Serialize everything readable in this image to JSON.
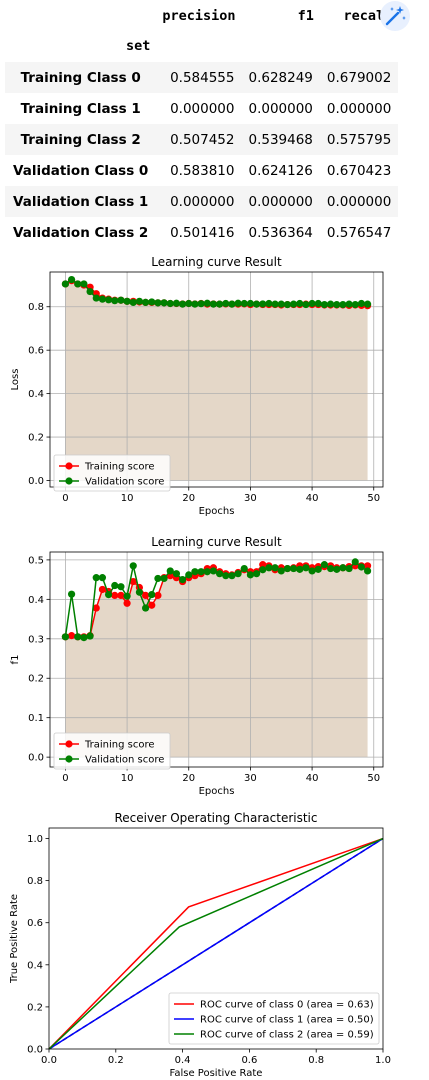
{
  "table": {
    "columns": [
      "precision",
      "f1",
      "recall"
    ],
    "index_name": "set",
    "rows": [
      {
        "label": "Training Class 0",
        "values": [
          "0.584555",
          "0.628249",
          "0.679002"
        ]
      },
      {
        "label": "Training Class 1",
        "values": [
          "0.000000",
          "0.000000",
          "0.000000"
        ]
      },
      {
        "label": "Training Class 2",
        "values": [
          "0.507452",
          "0.539468",
          "0.575795"
        ]
      },
      {
        "label": "Validation Class 0",
        "values": [
          "0.583810",
          "0.624126",
          "0.670423"
        ]
      },
      {
        "label": "Validation Class 1",
        "values": [
          "0.000000",
          "0.000000",
          "0.000000"
        ]
      },
      {
        "label": "Validation Class 2",
        "values": [
          "0.501416",
          "0.536364",
          "0.576547"
        ]
      }
    ]
  },
  "toolbar": {
    "icon": "magic-wand-icon"
  },
  "chart_data": [
    {
      "type": "table",
      "columns": [
        "precision",
        "f1",
        "recall"
      ],
      "rows": [
        "Training Class 0",
        "Training Class 1",
        "Training Class 2",
        "Validation Class 0",
        "Validation Class 1",
        "Validation Class 2"
      ],
      "values": [
        [
          0.584555,
          0.628249,
          0.679002
        ],
        [
          0.0,
          0.0,
          0.0
        ],
        [
          0.507452,
          0.539468,
          0.575795
        ],
        [
          0.58381,
          0.624126,
          0.670423
        ],
        [
          0.0,
          0.0,
          0.0
        ],
        [
          0.501416,
          0.536364,
          0.576547
        ]
      ]
    },
    {
      "type": "line",
      "title": "Learning curve Result",
      "xlabel": "Epochs",
      "ylabel": "Loss",
      "xlim": [
        -2.5,
        51.5
      ],
      "ylim": [
        -0.03,
        0.96
      ],
      "xticks": [
        0,
        10,
        20,
        30,
        40,
        50
      ],
      "yticks": [
        0.0,
        0.2,
        0.4,
        0.6,
        0.8
      ],
      "grid": true,
      "legend": "lower left",
      "fill_color": "#e4d7c8",
      "series": [
        {
          "name": "Training score",
          "color": "#ff0000",
          "x": [
            0,
            1,
            2,
            3,
            4,
            5,
            6,
            7,
            8,
            9,
            10,
            11,
            12,
            13,
            14,
            15,
            16,
            17,
            18,
            19,
            20,
            21,
            22,
            23,
            24,
            25,
            26,
            27,
            28,
            29,
            30,
            31,
            32,
            33,
            34,
            35,
            36,
            37,
            38,
            39,
            40,
            41,
            42,
            43,
            44,
            45,
            46,
            47,
            48,
            49
          ],
          "y": [
            0.905,
            0.92,
            0.905,
            0.9,
            0.89,
            0.86,
            0.84,
            0.835,
            0.83,
            0.83,
            0.825,
            0.825,
            0.822,
            0.82,
            0.82,
            0.818,
            0.818,
            0.815,
            0.815,
            0.813,
            0.815,
            0.813,
            0.815,
            0.812,
            0.813,
            0.812,
            0.813,
            0.812,
            0.812,
            0.813,
            0.81,
            0.812,
            0.81,
            0.81,
            0.81,
            0.808,
            0.81,
            0.81,
            0.81,
            0.812,
            0.81,
            0.81,
            0.808,
            0.808,
            0.808,
            0.808,
            0.806,
            0.808,
            0.806,
            0.805
          ]
        },
        {
          "name": "Validation score",
          "color": "#008000",
          "x": [
            0,
            1,
            2,
            3,
            4,
            5,
            6,
            7,
            8,
            9,
            10,
            11,
            12,
            13,
            14,
            15,
            16,
            17,
            18,
            19,
            20,
            21,
            22,
            23,
            24,
            25,
            26,
            27,
            28,
            29,
            30,
            31,
            32,
            33,
            34,
            35,
            36,
            37,
            38,
            39,
            40,
            41,
            42,
            43,
            44,
            45,
            46,
            47,
            48,
            49
          ],
          "y": [
            0.905,
            0.925,
            0.905,
            0.905,
            0.87,
            0.84,
            0.835,
            0.832,
            0.828,
            0.83,
            0.825,
            0.82,
            0.825,
            0.82,
            0.822,
            0.818,
            0.818,
            0.815,
            0.816,
            0.812,
            0.815,
            0.812,
            0.814,
            0.816,
            0.812,
            0.812,
            0.815,
            0.812,
            0.816,
            0.815,
            0.815,
            0.812,
            0.813,
            0.815,
            0.812,
            0.812,
            0.81,
            0.812,
            0.815,
            0.81,
            0.815,
            0.815,
            0.81,
            0.812,
            0.81,
            0.81,
            0.812,
            0.81,
            0.815,
            0.812
          ]
        }
      ]
    },
    {
      "type": "line",
      "title": "Learning curve Result",
      "xlabel": "Epochs",
      "ylabel": "f1",
      "xlim": [
        -2.5,
        51.5
      ],
      "ylim": [
        -0.025,
        0.52
      ],
      "xticks": [
        0,
        10,
        20,
        30,
        40,
        50
      ],
      "yticks": [
        0.0,
        0.1,
        0.2,
        0.3,
        0.4,
        0.5
      ],
      "grid": true,
      "legend": "lower left",
      "fill_color": "#e4d7c8",
      "series": [
        {
          "name": "Training score",
          "color": "#ff0000",
          "x": [
            0,
            1,
            2,
            3,
            4,
            5,
            6,
            7,
            8,
            9,
            10,
            11,
            12,
            13,
            14,
            15,
            16,
            17,
            18,
            19,
            20,
            21,
            22,
            23,
            24,
            25,
            26,
            27,
            28,
            29,
            30,
            31,
            32,
            33,
            34,
            35,
            36,
            37,
            38,
            39,
            40,
            41,
            42,
            43,
            44,
            45,
            46,
            47,
            48,
            49
          ],
          "y": [
            0.305,
            0.308,
            0.305,
            0.305,
            0.308,
            0.378,
            0.425,
            0.42,
            0.41,
            0.41,
            0.39,
            0.445,
            0.43,
            0.41,
            0.385,
            0.41,
            0.455,
            0.46,
            0.455,
            0.445,
            0.455,
            0.46,
            0.465,
            0.478,
            0.48,
            0.47,
            0.465,
            0.462,
            0.468,
            0.475,
            0.47,
            0.47,
            0.488,
            0.485,
            0.475,
            0.48,
            0.478,
            0.48,
            0.485,
            0.485,
            0.48,
            0.483,
            0.483,
            0.485,
            0.48,
            0.48,
            0.483,
            0.485,
            0.485,
            0.485
          ]
        },
        {
          "name": "Validation score",
          "color": "#008000",
          "x": [
            0,
            1,
            2,
            3,
            4,
            5,
            6,
            7,
            8,
            9,
            10,
            11,
            12,
            13,
            14,
            15,
            16,
            17,
            18,
            19,
            20,
            21,
            22,
            23,
            24,
            25,
            26,
            27,
            28,
            29,
            30,
            31,
            32,
            33,
            34,
            35,
            36,
            37,
            38,
            39,
            40,
            41,
            42,
            43,
            44,
            45,
            46,
            47,
            48,
            49
          ],
          "y": [
            0.305,
            0.413,
            0.305,
            0.303,
            0.307,
            0.455,
            0.455,
            0.412,
            0.435,
            0.432,
            0.408,
            0.485,
            0.418,
            0.378,
            0.412,
            0.453,
            0.453,
            0.472,
            0.465,
            0.45,
            0.462,
            0.47,
            0.47,
            0.47,
            0.472,
            0.465,
            0.46,
            0.46,
            0.465,
            0.478,
            0.462,
            0.465,
            0.475,
            0.48,
            0.48,
            0.472,
            0.478,
            0.478,
            0.476,
            0.48,
            0.472,
            0.476,
            0.488,
            0.478,
            0.476,
            0.48,
            0.478,
            0.495,
            0.482,
            0.472
          ]
        }
      ]
    },
    {
      "type": "line",
      "title": "Receiver Operating Characteristic",
      "xlabel": "False Positive Rate",
      "ylabel": "True Positive Rate",
      "xlim": [
        0.0,
        1.0
      ],
      "ylim": [
        0.0,
        1.05
      ],
      "xticks": [
        0.0,
        0.2,
        0.4,
        0.6,
        0.8,
        1.0
      ],
      "yticks": [
        0.0,
        0.2,
        0.4,
        0.6,
        0.8,
        1.0
      ],
      "grid": false,
      "legend": "lower right",
      "series": [
        {
          "name": "ROC curve of class 0 (area = 0.63)",
          "color": "#ff0000",
          "x": [
            0,
            0.418,
            1.0
          ],
          "y": [
            0,
            0.675,
            1.0
          ]
        },
        {
          "name": "ROC curve of class 1 (area = 0.50)",
          "color": "#0000ff",
          "x": [
            0,
            1.0
          ],
          "y": [
            0,
            1.0
          ]
        },
        {
          "name": "ROC curve of class 2 (area = 0.59)",
          "color": "#008000",
          "x": [
            0,
            0.39,
            1.0
          ],
          "y": [
            0,
            0.58,
            1.0
          ]
        }
      ],
      "diagonal": {
        "color": "#000000",
        "style": "dashed",
        "x": [
          0,
          1
        ],
        "y": [
          0,
          1
        ]
      }
    }
  ]
}
